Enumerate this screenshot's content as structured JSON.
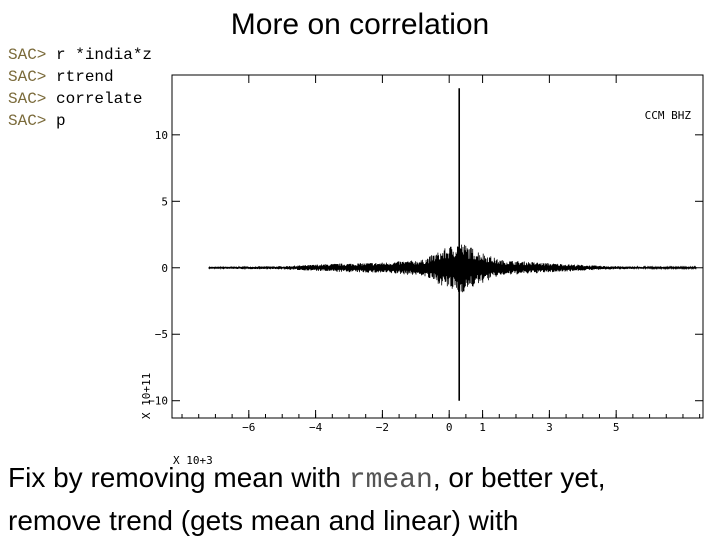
{
  "slide": {
    "title": "More on correlation",
    "caption": {
      "part1": "Fix by removing mean with ",
      "code": "rmean",
      "part2": ", or better yet,",
      "line2": "remove trend (gets mean and linear) with"
    }
  },
  "console": {
    "lines": [
      {
        "prompt": "SAC>",
        "cmd": "r *india*z"
      },
      {
        "prompt": "SAC>",
        "cmd": "rtrend"
      },
      {
        "prompt": "SAC>",
        "cmd": "correlate"
      },
      {
        "prompt": "SAC>",
        "cmd": "p"
      }
    ]
  },
  "chart_data": {
    "type": "line",
    "title": "",
    "series_label": "CCM  BHZ",
    "y_multiplier_label": "X 10+11",
    "x_multiplier_label": "X 10+3",
    "xlim": [
      -8.3,
      7.6
    ],
    "ylim": [
      -11.3,
      14.5
    ],
    "x_ticks": [
      -6,
      -4,
      -2,
      0,
      1,
      3,
      5
    ],
    "x_tick_labels": [
      "−6",
      "−4",
      "−2",
      "0",
      "1",
      "3",
      "5"
    ],
    "y_ticks": [
      10,
      5,
      0,
      -5,
      -10
    ],
    "y_tick_labels": [
      "10",
      "5",
      "0",
      "−5",
      "−10"
    ],
    "spike": {
      "x": 0.3,
      "ymax": 13.5,
      "ymin": -10
    },
    "envelope": [
      {
        "x": -7.2,
        "amp": 0.08
      },
      {
        "x": -5.0,
        "amp": 0.12
      },
      {
        "x": -3.5,
        "amp": 0.3
      },
      {
        "x": -2.0,
        "amp": 0.4
      },
      {
        "x": -0.8,
        "amp": 0.6
      },
      {
        "x": -0.1,
        "amp": 1.5
      },
      {
        "x": 0.3,
        "amp": 2.0
      },
      {
        "x": 0.7,
        "amp": 1.5
      },
      {
        "x": 1.5,
        "amp": 0.6
      },
      {
        "x": 3.0,
        "amp": 0.35
      },
      {
        "x": 4.5,
        "amp": 0.15
      },
      {
        "x": 6.0,
        "amp": 0.06
      }
    ],
    "frame_color": "#000000",
    "trace_color": "#000000"
  }
}
